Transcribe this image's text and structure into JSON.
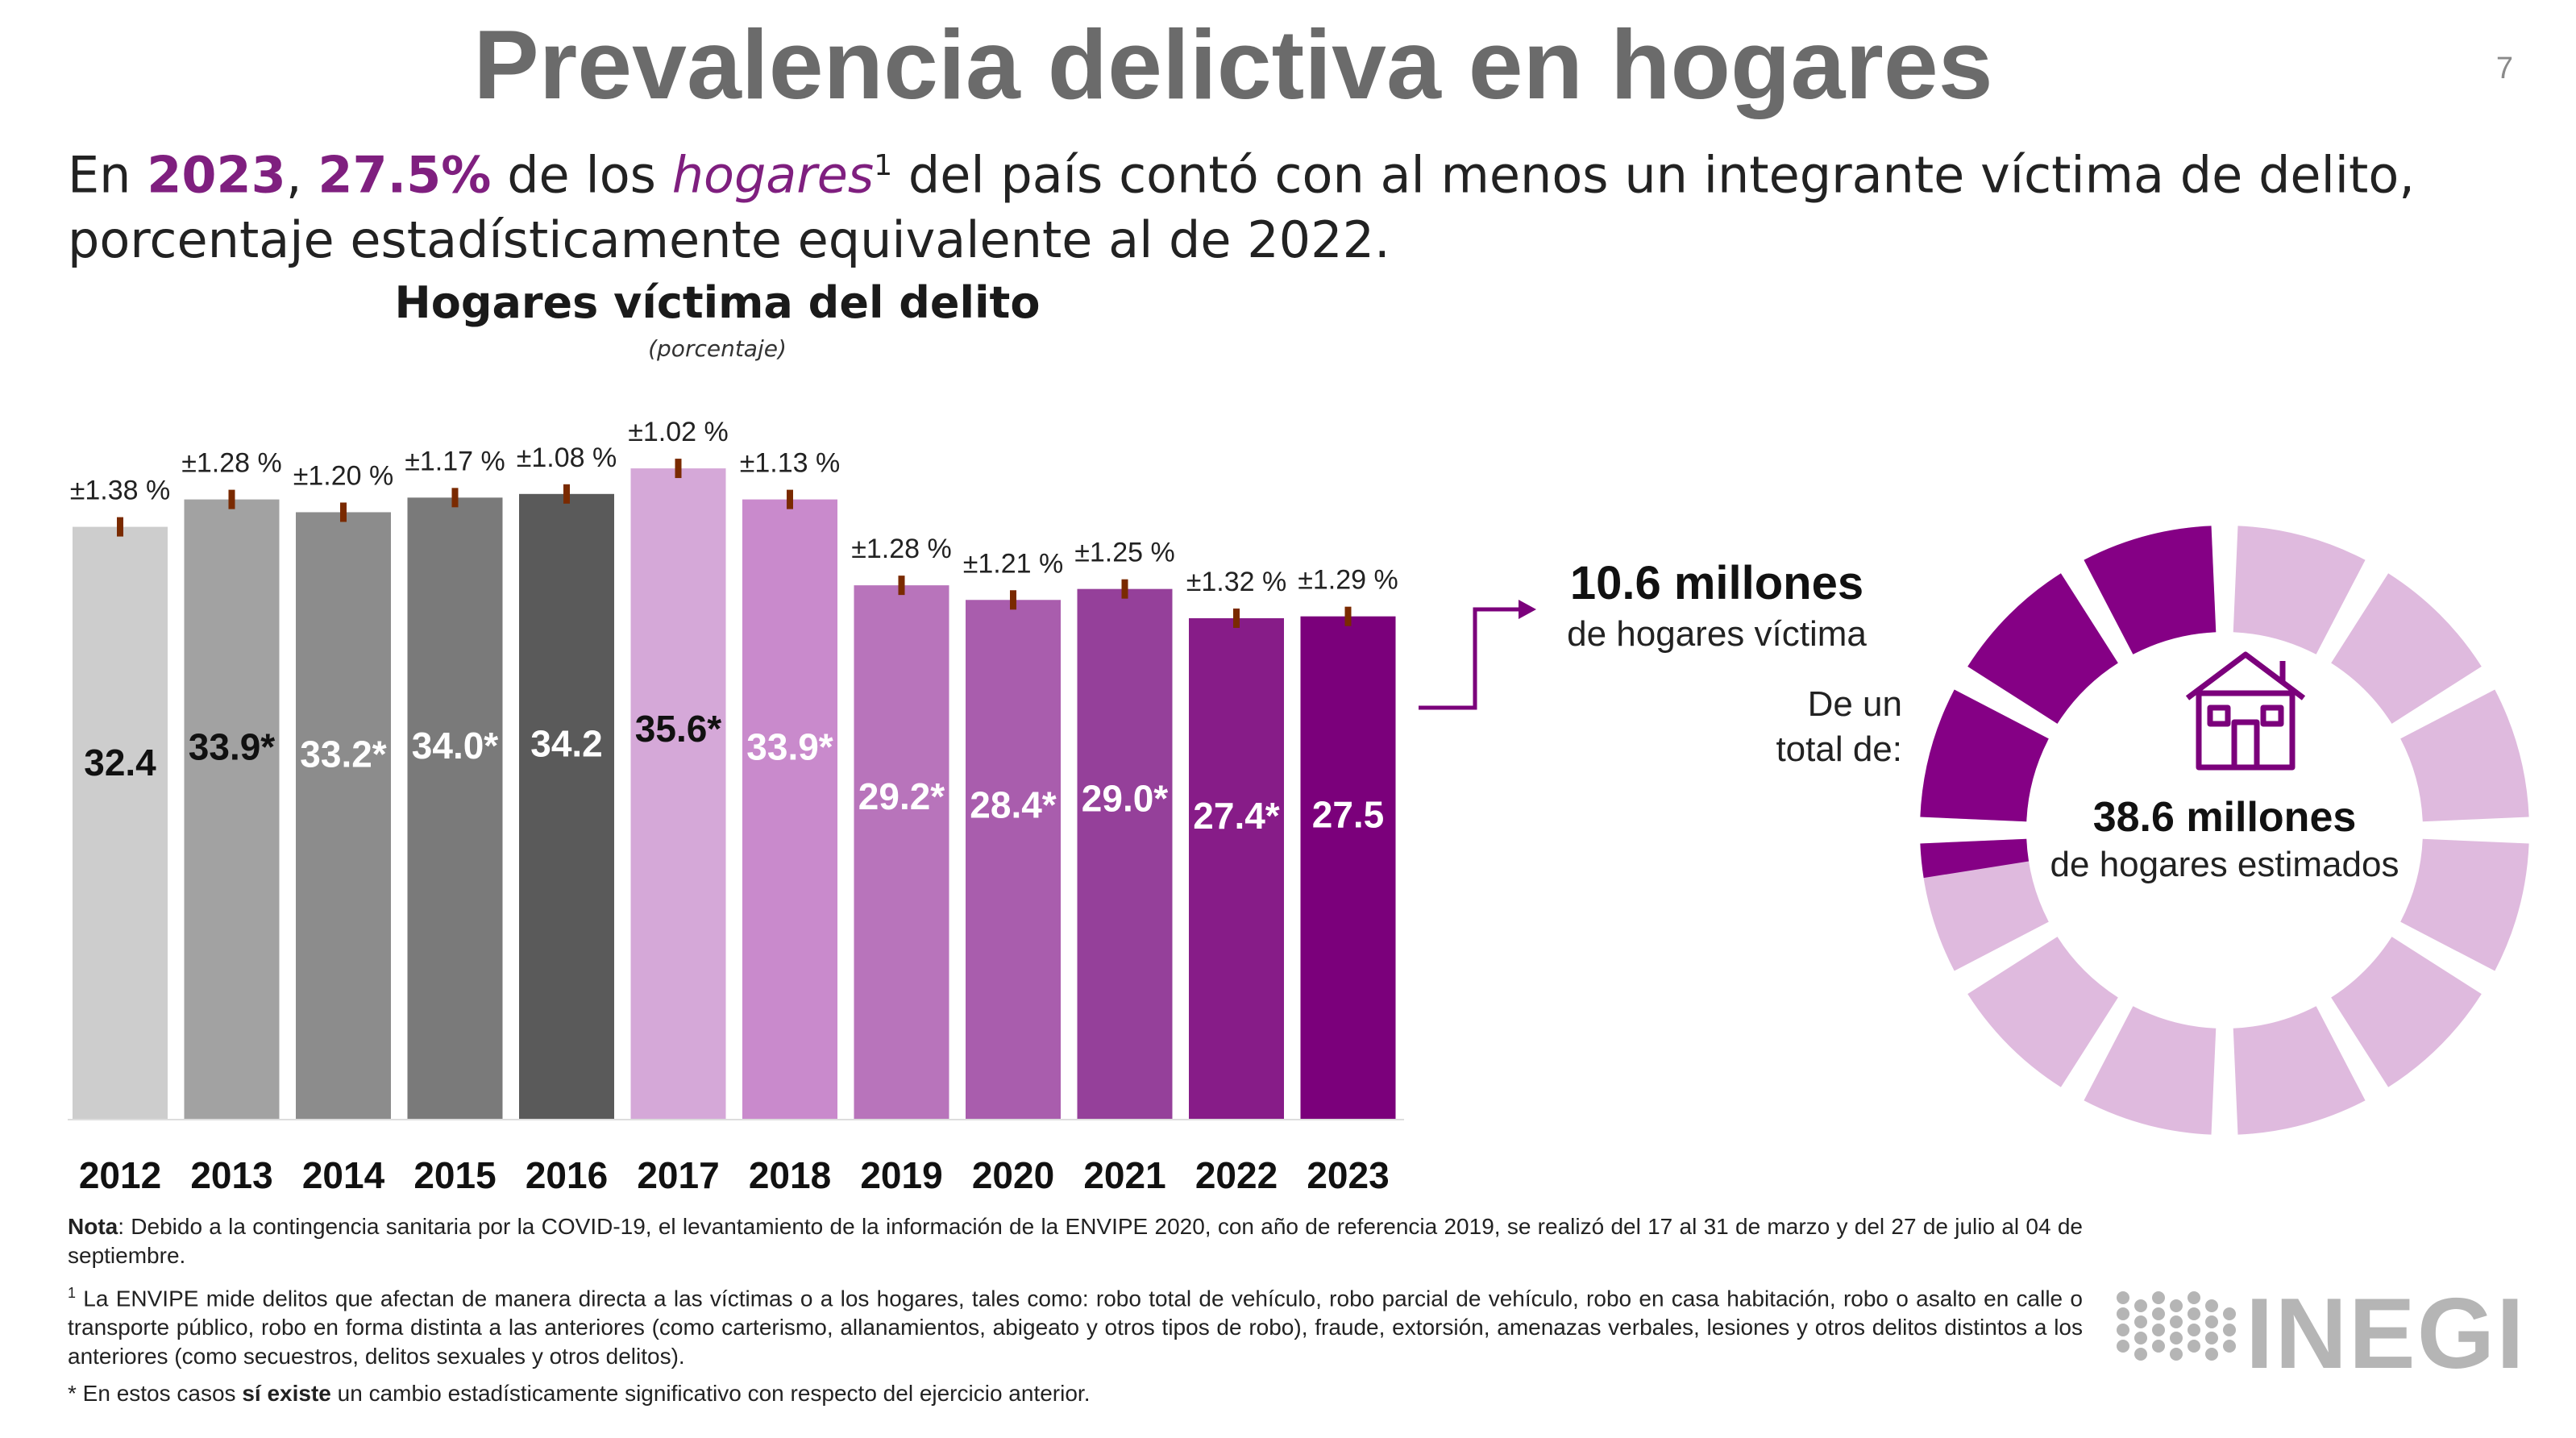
{
  "page_title": "Prevalencia delictiva en hogares",
  "page_number": "7",
  "headline": {
    "p1": "En ",
    "year": "2023",
    "p2": ", ",
    "pct": "27.5%",
    "p3": " de los ",
    "hogares": "hogares",
    "sup": "1",
    "p4": " del país contó con al menos un integrante víctima de delito, porcentaje estadísticamente equivalente al de 2022."
  },
  "chart_data": {
    "type": "bar",
    "title": "Hogares víctima del delito",
    "subtitle": "(porcentaje)",
    "categories": [
      "2012",
      "2013",
      "2014",
      "2015",
      "2016",
      "2017",
      "2018",
      "2019",
      "2020",
      "2021",
      "2022",
      "2023"
    ],
    "values": [
      32.4,
      33.9,
      33.2,
      34.0,
      34.2,
      35.6,
      33.9,
      29.2,
      28.4,
      29.0,
      27.4,
      27.5
    ],
    "value_labels": [
      "32.4",
      "33.9*",
      "33.2*",
      "34.0*",
      "34.2",
      "35.6*",
      "33.9*",
      "29.2*",
      "28.4*",
      "29.0*",
      "27.4*",
      "27.5"
    ],
    "error_labels": [
      "±1.38 %",
      "±1.28 %",
      "±1.20 %",
      "±1.17 %",
      "±1.08 %",
      "±1.02 %",
      "±1.13 %",
      "±1.28 %",
      "±1.21 %",
      "±1.25 %",
      "±1.32 %",
      "±1.29 %"
    ],
    "colors": [
      "#cdcdcd",
      "#a2a2a2",
      "#8c8c8c",
      "#7a7a7a",
      "#5a5a5a",
      "#d5a8d8",
      "#c98acc",
      "#b874bb",
      "#a95dad",
      "#95409a",
      "#871c88",
      "#7b007b"
    ],
    "label_colors": [
      "#111111",
      "#111111",
      "#ffffff",
      "#ffffff",
      "#ffffff",
      "#111111",
      "#ffffff",
      "#ffffff",
      "#ffffff",
      "#ffffff",
      "#ffffff",
      "#ffffff"
    ],
    "error_color": "#7a2a00",
    "ylim": [
      0,
      37.5
    ],
    "grid": false
  },
  "callout": {
    "victims_value": "10.6 millones",
    "victims_label": "de hogares víctima",
    "of_total_line1": "De un",
    "of_total_line2": "total de:",
    "total_value": "38.6 millones",
    "total_label": "de hogares estimados",
    "house_icon": "house-icon",
    "arrow_color": "#7b007b"
  },
  "donut": {
    "segments": 12,
    "filled_fraction": 0.275,
    "dark_color": "#850085",
    "light_color": "#dfbade"
  },
  "notes": {
    "nota_label": "Nota",
    "nota_text": ": Debido a la contingencia sanitaria por la COVID-19, el levantamiento de la información de la ENVIPE 2020, con año de referencia 2019, se realizó del 17 al 31 de marzo y del 27 de julio al 04 de septiembre.",
    "fn_mark": "1",
    "fn_text": " La ENVIPE mide delitos que afectan de manera directa a las víctimas o a los hogares, tales como: robo total de vehículo, robo parcial de vehículo, robo en casa habitación, robo o asalto en calle o transporte público, robo en forma distinta a las anteriores (como carterismo, allanamientos, abigeato y otros tipos de robo), fraude, extorsión, amenazas verbales, lesiones y otros delitos distintos a los anteriores (como secuestros, delitos sexuales y otros delitos).",
    "star_p1": "* En estos casos ",
    "star_bold": "sí existe",
    "star_p2": " un cambio estadísticamente significativo con respecto del ejercicio anterior."
  },
  "logo": {
    "text": "INEGI"
  }
}
